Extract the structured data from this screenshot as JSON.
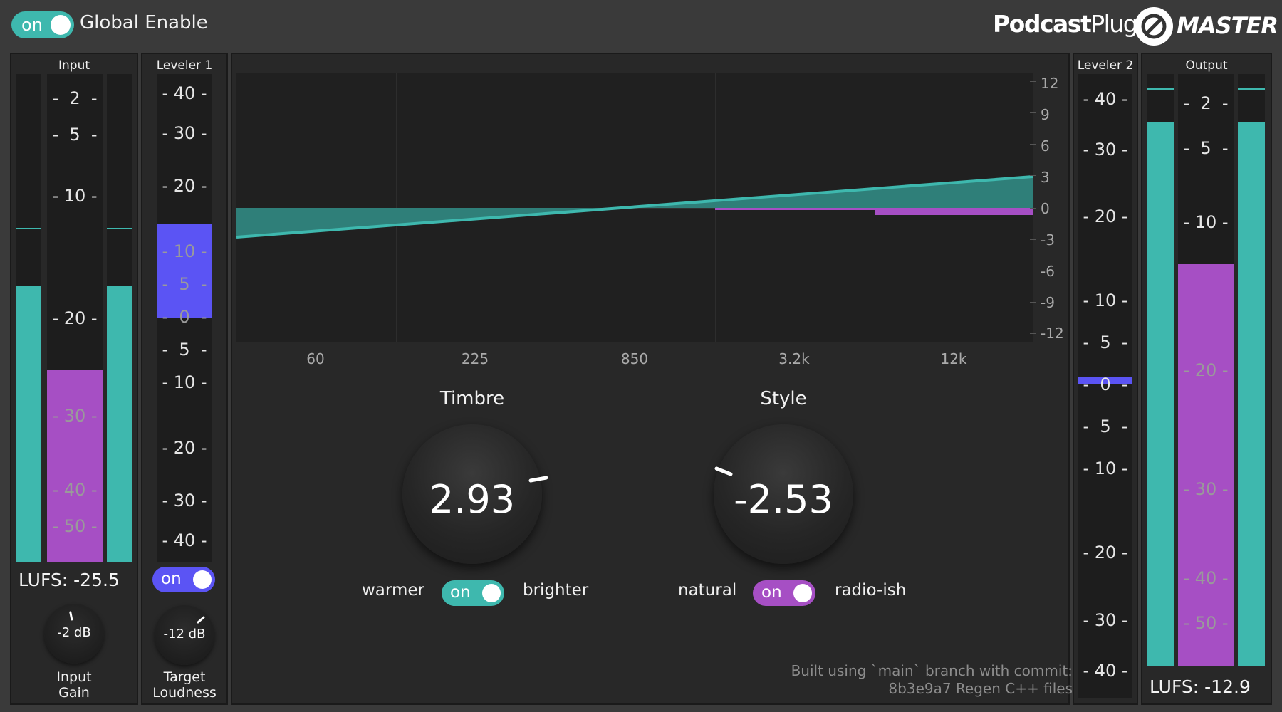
{
  "header": {
    "global_toggle_label": "on",
    "global_enable_label": "Global Enable",
    "brand_bold": "Podcast",
    "brand_light": "Plugins",
    "brand_product": "MASTER"
  },
  "input": {
    "title": "Input",
    "scale": [
      "-  2  -",
      "-  5  -",
      "- 10 -",
      "- 20 -",
      "- 30 -",
      "- 40 -",
      "- 50 -"
    ],
    "lufs": "LUFS: -25.5",
    "gain_value": "-2 dB",
    "gain_label": "Input\nGain",
    "level_left_fraction": 0.57,
    "level_right_fraction": 0.57,
    "loudness_fraction": 0.39
  },
  "leveler1": {
    "title": "Leveler 1",
    "scale": [
      "- 40 -",
      "- 30 -",
      "- 20 -",
      "- 10 -",
      "-  5  -",
      "-  0  -",
      "-  5  -",
      "- 10 -",
      "- 20 -",
      "- 30 -",
      "- 40 -"
    ],
    "toggle_label": "on",
    "target_value": "-12 dB",
    "target_label": "Target\nLoudness",
    "gain_db": 10
  },
  "eq": {
    "db_labels": [
      "12",
      "9",
      "6",
      "3",
      "0",
      "-3",
      "-6",
      "-9",
      "-12"
    ],
    "freq_labels": [
      "60",
      "225",
      "850",
      "3.2k",
      "12k"
    ]
  },
  "timbre": {
    "title": "Timbre",
    "value": "2.93",
    "left_label": "warmer",
    "right_label": "brighter",
    "toggle_label": "on",
    "accent": "#3eb8ae"
  },
  "style": {
    "title": "Style",
    "value": "-2.53",
    "left_label": "natural",
    "right_label": "radio-ish",
    "toggle_label": "on",
    "accent": "#a64fc4"
  },
  "build": {
    "line1": "Built using `main` branch with commit:",
    "line2": "8b3e9a7 Regen C++ files"
  },
  "leveler2": {
    "title": "Leveler 2",
    "scale": [
      "- 40 -",
      "- 30 -",
      "- 20 -",
      "- 10 -",
      "-  5  -",
      "-  0  -",
      "-  5  -",
      "- 10 -",
      "- 20 -",
      "- 30 -",
      "- 40 -"
    ],
    "gain_db": 0
  },
  "output": {
    "title": "Output",
    "scale": [
      "-  2  -",
      "-  5  -",
      "- 10 -",
      "- 20 -",
      "- 30 -",
      "- 40 -",
      "- 50 -"
    ],
    "lufs": "LUFS: -12.9",
    "level_left_fraction": 0.93,
    "level_right_fraction": 0.93,
    "loudness_fraction": 0.69
  },
  "colors": {
    "teal": "#3eb8ae",
    "purple": "#a64fc4",
    "blue": "#5b54f4"
  }
}
